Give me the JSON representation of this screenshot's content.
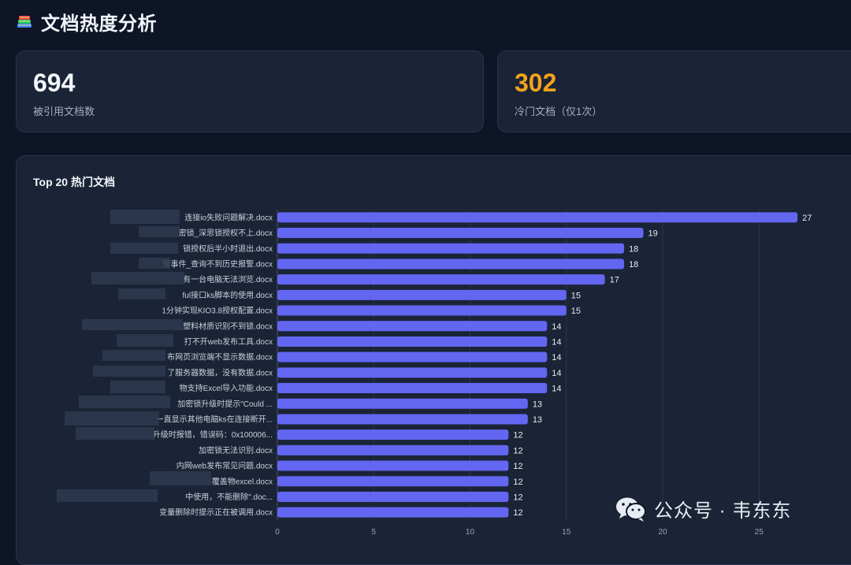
{
  "header": {
    "icon": "books-icon",
    "title": "文档热度分析"
  },
  "stats": {
    "referenced": {
      "value": "694",
      "label": "被引用文档数",
      "color": "#f4f6fb"
    },
    "cold": {
      "value": "302",
      "label": "冷门文档（仅1次）",
      "color": "#f4a21c"
    }
  },
  "watermark": {
    "icon": "wechat-icon",
    "text": "公众号 · 韦东东"
  },
  "chart_data": {
    "type": "bar",
    "orientation": "horizontal",
    "title": "Top 20 热门文档",
    "categories": [
      "连接io失败问题解决.docx",
      "密锁_深思锁授权不上.docx",
      "锁授权后半小时退出.docx",
      "警事件_查询不到历史报警.docx",
      "有一台电脑无法浏览.docx",
      "ful接口ks脚本的使用.docx",
      "1分钟实现KIO3.8授权配置.docx",
      "塑料材质识别不到锁.docx",
      "打不开web发布工具.docx",
      "布网页浏览端不显示数据.docx",
      "了服务器数据，没有数据.docx",
      "物支持Excel导入功能.docx",
      "加密锁升级时提示\"Could ...",
      "一直显示其他电脑ks在连接断开...",
      "升级时报错，错误码：0x100006...",
      "加密锁无法识别.docx",
      "内网web发布常见问题.docx",
      "覆盖物excel.docx",
      "中使用，不能删除\".doc...",
      "变量删除时提示正在被调用.docx"
    ],
    "values": [
      27,
      19,
      18,
      18,
      17,
      15,
      15,
      14,
      14,
      14,
      14,
      14,
      13,
      13,
      12,
      12,
      12,
      12,
      12,
      12
    ],
    "xticks": [
      0,
      5,
      10,
      15,
      20,
      25
    ],
    "xlim": [
      0,
      29
    ],
    "grid": true,
    "bar_color": "#6366f1",
    "data_labels": true
  }
}
